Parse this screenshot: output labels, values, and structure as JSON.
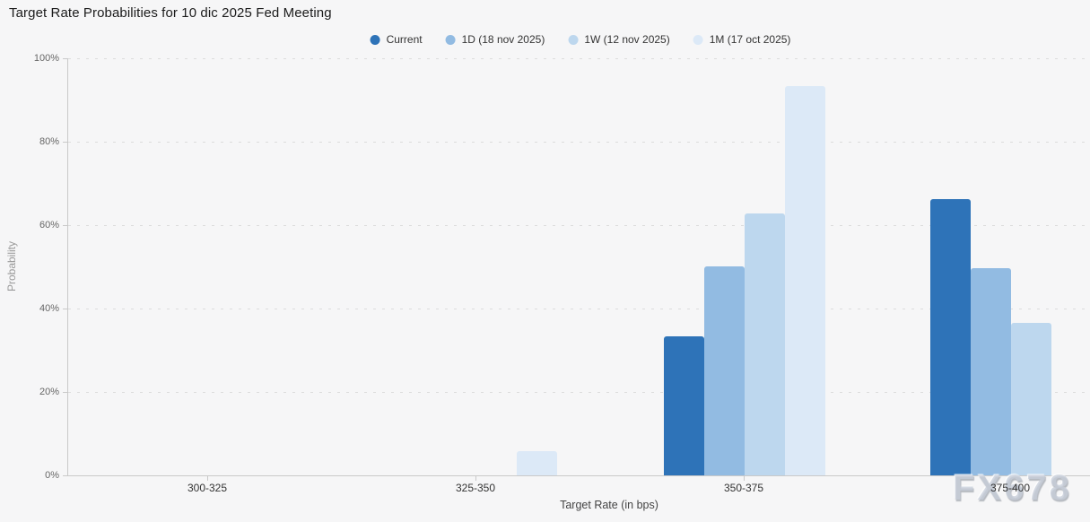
{
  "title": "Target Rate Probabilities for 10 dic 2025 Fed Meeting",
  "watermark": "FX678",
  "colors": {
    "background": "#f6f6f7",
    "axis": "#c9c9c9",
    "grid": "#dcdcdc"
  },
  "chart_data": {
    "type": "bar",
    "title": "Target Rate Probabilities for 10 dic 2025 Fed Meeting",
    "xlabel": "Target Rate (in bps)",
    "ylabel": "Probability",
    "ylim": [
      0,
      100
    ],
    "y_ticks": [
      "0%",
      "20%",
      "40%",
      "60%",
      "80%",
      "100%"
    ],
    "grid": "horizontal-dotted",
    "legend_position": "top",
    "categories": [
      "300-325",
      "325-350",
      "350-375",
      "375-400"
    ],
    "series": [
      {
        "name": "Current",
        "color": "#2e73b8",
        "values": [
          0,
          0,
          33.4,
          66.3
        ]
      },
      {
        "name": "1D (18 nov 2025)",
        "color": "#92bbe2",
        "values": [
          0,
          0,
          50.1,
          49.6
        ]
      },
      {
        "name": "1W (12 nov 2025)",
        "color": "#bdd7ee",
        "values": [
          0,
          0,
          62.7,
          36.6
        ]
      },
      {
        "name": "1M (17 oct 2025)",
        "color": "#dce9f7",
        "values": [
          0,
          5.9,
          93.4,
          0
        ]
      }
    ]
  }
}
